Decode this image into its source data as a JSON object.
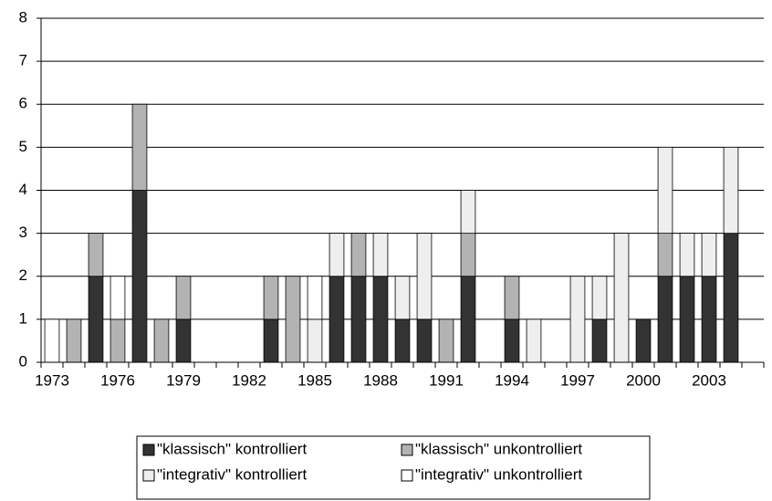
{
  "chart_data": {
    "type": "bar",
    "stacked": true,
    "categories": [
      "1973",
      null,
      null,
      "1976",
      null,
      null,
      "1979",
      null,
      null,
      "1982",
      null,
      null,
      "1985",
      null,
      null,
      "1988",
      null,
      null,
      "1991",
      null,
      null,
      "1994",
      null,
      null,
      "1997",
      null,
      null,
      "2000",
      null,
      null,
      "2003",
      null,
      null
    ],
    "series": [
      {
        "name": "\"klassisch\" kontrolliert",
        "color": "#333333",
        "values": [
          0,
          0,
          2,
          0,
          4,
          0,
          1,
          0,
          0,
          0,
          1,
          0,
          0,
          2,
          2,
          2,
          1,
          1,
          0,
          2,
          0,
          1,
          0,
          0,
          0,
          1,
          0,
          1,
          2,
          2,
          2,
          3,
          0
        ]
      },
      {
        "name": "\"klassisch\" unkontrolliert",
        "color": "#b3b3b3",
        "values": [
          0,
          1,
          1,
          1,
          2,
          1,
          1,
          0,
          0,
          0,
          1,
          2,
          0,
          0,
          1,
          0,
          0,
          0,
          1,
          1,
          0,
          1,
          0,
          0,
          0,
          0,
          0,
          0,
          1,
          0,
          0,
          0,
          0
        ]
      },
      {
        "name": "\"integrativ\" kontrolliert",
        "color": "#eeeeee",
        "values": [
          0,
          0,
          0,
          0,
          0,
          0,
          0,
          0,
          0,
          0,
          0,
          0,
          1,
          1,
          0,
          1,
          1,
          2,
          0,
          1,
          0,
          0,
          1,
          0,
          2,
          1,
          3,
          0,
          2,
          1,
          1,
          2,
          0
        ]
      },
      {
        "name": "\"integrativ\" unkontrolliert",
        "color": "#ffffff",
        "values": [
          1,
          0,
          0,
          1,
          0,
          0,
          0,
          0,
          0,
          0,
          0,
          0,
          1,
          0,
          0,
          0,
          0,
          0,
          0,
          0,
          0,
          0,
          0,
          0,
          0,
          0,
          0,
          0,
          0,
          0,
          0,
          0,
          0
        ]
      }
    ],
    "ylim": [
      0,
      8
    ],
    "yticks": [
      0,
      1,
      2,
      3,
      4,
      5,
      6,
      7,
      8
    ],
    "grid": true,
    "legend": "bottom"
  }
}
